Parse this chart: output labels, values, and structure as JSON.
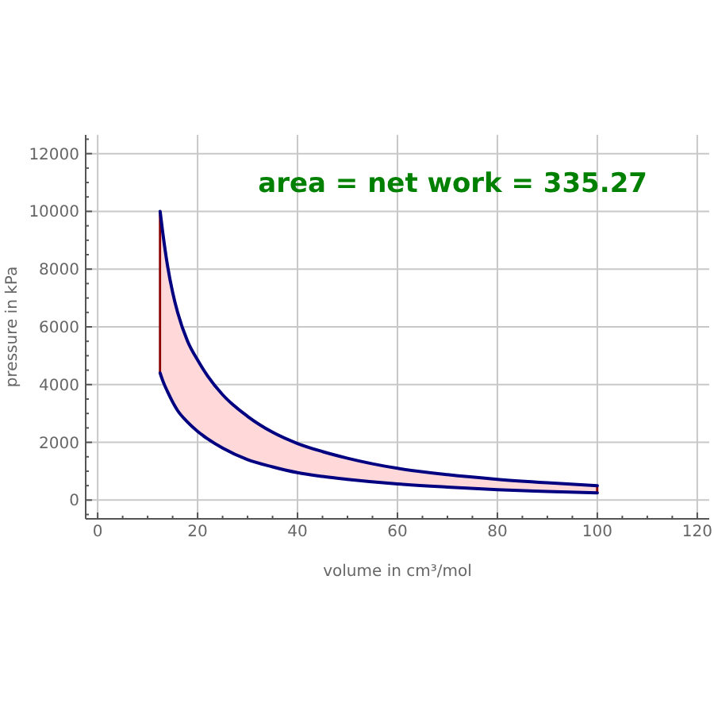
{
  "chart_data": {
    "type": "line",
    "xlabel": "volume in cm³/mol",
    "ylabel": "pressure in kPa",
    "annotations": [
      "area = net work = 335.27"
    ],
    "x": [
      12.5,
      13,
      14,
      15,
      16,
      18,
      20,
      22,
      25,
      30,
      35,
      40,
      45,
      50,
      60,
      70,
      80,
      90,
      100
    ],
    "series": [
      {
        "color": "#000080",
        "values": [
          10000,
          9300,
          8100,
          7200,
          6500,
          5500,
          4850,
          4300,
          3650,
          2900,
          2350,
          1960,
          1680,
          1450,
          1100,
          880,
          720,
          600,
          500
        ],
        "lower": [
          4400,
          4150,
          3750,
          3400,
          3100,
          2700,
          2380,
          2120,
          1800,
          1400,
          1150,
          950,
          820,
          720,
          560,
          450,
          360,
          300,
          250
        ],
        "upper": [
          10000,
          9300,
          8100,
          7200,
          6500,
          5500,
          4850,
          4300,
          3650,
          2900,
          2350,
          1960,
          1680,
          1450,
          1100,
          880,
          720,
          600,
          500
        ]
      },
      {
        "color": "#000080",
        "values": [
          4400,
          4150,
          3750,
          3400,
          3100,
          2700,
          2380,
          2120,
          1800,
          1400,
          1150,
          950,
          820,
          720,
          560,
          450,
          360,
          300,
          250
        ]
      },
      {
        "type": "bar",
        "color": "#8b0000",
        "x": [
          12.5,
          100
        ],
        "base": [
          4400,
          250
        ],
        "values": [
          5600,
          250
        ]
      }
    ],
    "xlim": [
      -2.4,
      122.4
    ],
    "ylim": [
      -650,
      12650
    ],
    "xticks": [
      0,
      {
        "value": 5,
        "label": null
      },
      {
        "value": 10,
        "label": null
      },
      {
        "value": 15,
        "label": null
      },
      20,
      {
        "value": 25,
        "label": null
      },
      {
        "value": 30,
        "label": null
      },
      {
        "value": 35,
        "label": null
      },
      40,
      {
        "value": 45,
        "label": null
      },
      {
        "value": 50,
        "label": null
      },
      {
        "value": 55,
        "label": null
      },
      60,
      {
        "value": 65,
        "label": null
      },
      {
        "value": 70,
        "label": null
      },
      {
        "value": 75,
        "label": null
      },
      80,
      {
        "value": 85,
        "label": null
      },
      {
        "value": 90,
        "label": null
      },
      {
        "value": 95,
        "label": null
      },
      100,
      {
        "value": 105,
        "label": null
      },
      {
        "value": 110,
        "label": null
      },
      {
        "value": 115,
        "label": null
      },
      120
    ],
    "yticks": [
      {
        "value": -500,
        "label": null
      },
      0,
      {
        "value": 500,
        "label": null
      },
      {
        "value": 1000,
        "label": null
      },
      {
        "value": 1500,
        "label": null
      },
      2000,
      {
        "value": 2500,
        "label": null
      },
      {
        "value": 3000,
        "label": null
      },
      {
        "value": 3500,
        "label": null
      },
      4000,
      {
        "value": 4500,
        "label": null
      },
      {
        "value": 5000,
        "label": null
      },
      {
        "value": 5500,
        "label": null
      },
      6000,
      {
        "value": 6500,
        "label": null
      },
      {
        "value": 7000,
        "label": null
      },
      {
        "value": 7500,
        "label": null
      },
      8000,
      {
        "value": 8500,
        "label": null
      },
      {
        "value": 9000,
        "label": null
      },
      {
        "value": 9500,
        "label": null
      },
      10000,
      {
        "value": 10500,
        "label": null
      },
      {
        "value": 11000,
        "label": null
      },
      {
        "value": 11500,
        "label": null
      },
      12000,
      {
        "value": 12500,
        "label": null
      }
    ],
    "grid": true
  }
}
